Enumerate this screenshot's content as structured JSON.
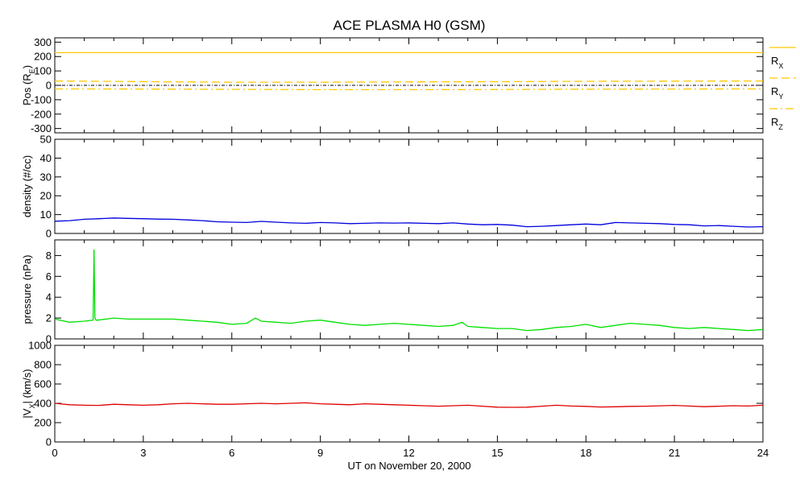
{
  "chart_data": {
    "title": "ACE PLASMA H0 (GSM)",
    "xlabel": "UT on November 20, 2000",
    "x_range": [
      0,
      24
    ],
    "x_ticks": [
      0,
      3,
      6,
      9,
      12,
      15,
      18,
      21,
      24
    ],
    "panels": [
      {
        "id": "pos",
        "type": "line",
        "ylabel": "Pos (R",
        "ylabel_sub": "E",
        "ylabel_close": ")",
        "ylim": [
          -330,
          330
        ],
        "y_ticks": [
          300,
          200,
          100,
          0,
          -100,
          -200,
          -300
        ],
        "zero_line": true,
        "series": [
          {
            "name": "R",
            "sub": "X",
            "color": "#ffc800",
            "style": "solid",
            "x": [
              0,
              6,
              12,
              18,
              24
            ],
            "y": [
              227,
              227,
              227,
              227,
              227
            ]
          },
          {
            "name": "R",
            "sub": "Y",
            "color": "#ffc800",
            "style": "dashed",
            "x": [
              0,
              3,
              6,
              9,
              12,
              15,
              18,
              21,
              24
            ],
            "y": [
              30,
              26,
              22,
              22,
              24,
              25,
              28,
              29,
              30
            ]
          },
          {
            "name": "R",
            "sub": "Z",
            "color": "#ffc800",
            "style": "dashdot",
            "x": [
              0,
              3,
              6,
              9,
              12,
              15,
              18,
              21,
              24
            ],
            "y": [
              -25,
              -26,
              -28,
              -30,
              -30,
              -29,
              -27,
              -26,
              -25
            ]
          }
        ]
      },
      {
        "id": "density",
        "type": "line",
        "ylabel": "density (#/cc)",
        "ylim": [
          0,
          50
        ],
        "y_ticks": [
          50,
          40,
          30,
          20,
          10,
          0
        ],
        "series": [
          {
            "color": "#0000dd",
            "x": [
              0,
              0.5,
              1,
              1.5,
              2,
              2.5,
              3,
              3.5,
              4,
              4.5,
              5,
              5.5,
              6,
              6.5,
              7,
              7.5,
              8,
              8.5,
              9,
              9.5,
              10,
              10.5,
              11,
              11.5,
              12,
              12.5,
              13,
              13.5,
              14,
              14.5,
              15,
              15.5,
              16,
              16.5,
              17,
              17.5,
              18,
              18.5,
              19,
              19.5,
              20,
              20.5,
              21,
              21.5,
              22,
              22.5,
              23,
              23.5,
              24
            ],
            "y": [
              6.5,
              6.8,
              7.5,
              7.8,
              8.2,
              8.0,
              7.8,
              7.6,
              7.5,
              7.2,
              6.8,
              6.2,
              6.0,
              5.8,
              6.4,
              6.0,
              5.6,
              5.4,
              5.8,
              5.6,
              5.2,
              5.4,
              5.6,
              5.5,
              5.6,
              5.4,
              5.2,
              5.6,
              5.0,
              4.6,
              4.8,
              4.4,
              3.6,
              3.8,
              4.2,
              4.6,
              5.0,
              4.6,
              5.8,
              5.6,
              5.4,
              5.2,
              4.8,
              4.6,
              4.0,
              4.2,
              3.8,
              3.4,
              3.6
            ]
          }
        ]
      },
      {
        "id": "pressure",
        "type": "line",
        "ylabel": "pressure (nPa)",
        "ylim": [
          0,
          9.5
        ],
        "y_ticks": [
          8,
          6,
          4,
          2,
          0
        ],
        "series": [
          {
            "color": "#00e000",
            "x": [
              0,
              0.5,
              1,
              1.3,
              1.33,
              1.36,
              1.4,
              1.45,
              2,
              2.5,
              3,
              3.5,
              4,
              4.5,
              5,
              5.5,
              6,
              6.5,
              6.8,
              7,
              7.5,
              8,
              8.5,
              9,
              9.5,
              10,
              10.5,
              11,
              11.5,
              12,
              12.5,
              13,
              13.5,
              13.8,
              14,
              14.5,
              15,
              15.5,
              16,
              16.5,
              17,
              17.5,
              18,
              18.5,
              19,
              19.5,
              20,
              20.5,
              21,
              21.5,
              22,
              22.5,
              23,
              23.5,
              24
            ],
            "y": [
              1.9,
              1.6,
              1.7,
              1.8,
              8.6,
              2.0,
              1.8,
              1.8,
              2.0,
              1.9,
              1.9,
              1.9,
              1.9,
              1.8,
              1.7,
              1.6,
              1.4,
              1.5,
              2.0,
              1.7,
              1.6,
              1.5,
              1.7,
              1.8,
              1.6,
              1.4,
              1.3,
              1.4,
              1.5,
              1.4,
              1.3,
              1.2,
              1.3,
              1.6,
              1.2,
              1.1,
              1.0,
              1.0,
              0.8,
              0.9,
              1.1,
              1.2,
              1.4,
              1.1,
              1.3,
              1.5,
              1.4,
              1.3,
              1.1,
              1.0,
              1.1,
              1.0,
              0.9,
              0.8,
              0.9
            ]
          }
        ]
      },
      {
        "id": "vx",
        "type": "line",
        "ylabel": "|V",
        "ylabel_sub": "X",
        "ylabel_close": "| (km/s)",
        "ylim": [
          0,
          1000
        ],
        "y_ticks": [
          1000,
          800,
          600,
          400,
          200,
          0
        ],
        "series": [
          {
            "color": "#e00000",
            "x": [
              0,
              0.5,
              1,
              1.5,
              2,
              2.5,
              3,
              3.5,
              4,
              4.5,
              5,
              5.5,
              6,
              6.5,
              7,
              7.5,
              8,
              8.5,
              9,
              9.5,
              10,
              10.5,
              11,
              11.5,
              12,
              12.5,
              13,
              13.5,
              14,
              14.5,
              15,
              15.5,
              16,
              16.5,
              17,
              17.5,
              18,
              18.5,
              19,
              19.5,
              20,
              20.5,
              21,
              21.5,
              22,
              22.5,
              23,
              23.5,
              24
            ],
            "y": [
              400,
              385,
              380,
              378,
              390,
              385,
              380,
              385,
              395,
              400,
              395,
              390,
              390,
              395,
              400,
              395,
              400,
              405,
              395,
              390,
              385,
              395,
              390,
              385,
              380,
              375,
              370,
              375,
              380,
              370,
              360,
              358,
              360,
              370,
              380,
              372,
              368,
              362,
              364,
              368,
              370,
              374,
              378,
              372,
              365,
              370,
              375,
              372,
              380
            ]
          }
        ]
      }
    ]
  }
}
